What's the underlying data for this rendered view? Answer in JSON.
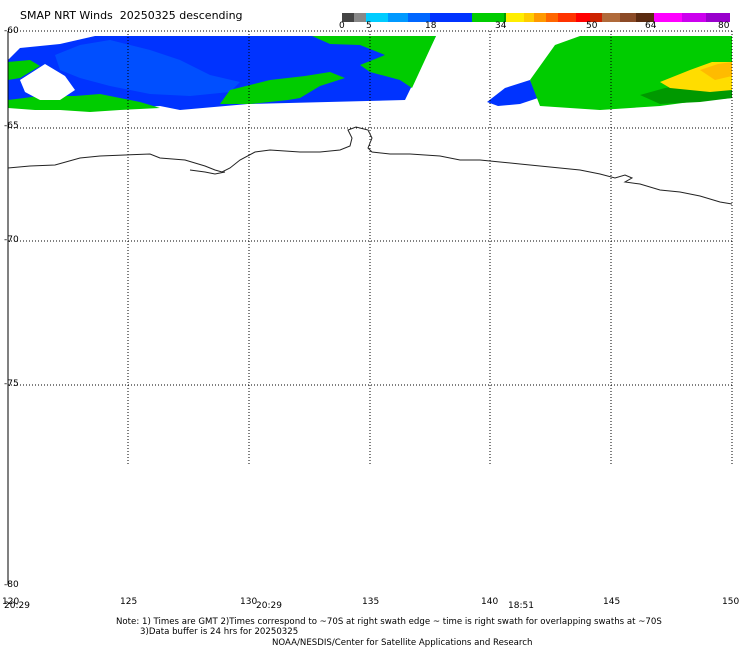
{
  "title": "SMAP NRT Winds  20250325 descending",
  "colorbar": {
    "labels": [
      "0",
      "5",
      "18",
      "34",
      "50",
      "64",
      "80"
    ],
    "colors": [
      "#444444",
      "#666666",
      "#999999",
      "#00ccff",
      "#0099ff",
      "#0066ff",
      "#0033ff",
      "#00cc00",
      "#009900",
      "#ffff00",
      "#ffcc00",
      "#ff9900",
      "#ff6600",
      "#ff3300",
      "#ff0000",
      "#cc6633",
      "#996633",
      "#663300",
      "#ff00ff",
      "#cc00ff",
      "#9900cc"
    ]
  },
  "map": {
    "lat_labels": [
      "-60",
      "-65",
      "-70",
      "-75",
      "-80"
    ],
    "lon_labels": [
      "120",
      "125",
      "130",
      "135",
      "140",
      "145",
      "150"
    ],
    "swath_times": [
      "20:29",
      "20:29",
      "18:51"
    ],
    "grid": "dotted",
    "wind_colors": {
      "blue": "#0033ff",
      "mid_blue": "#0066ff",
      "light_blue": "#0099ff",
      "green": "#00cc00",
      "dark_green": "#009900",
      "yellow": "#ffdd00",
      "orange": "#ffcc00"
    }
  },
  "notes": {
    "line1": "Note: 1) Times are GMT 2)Times correspond to ~70S at right swath edge ~ time is right swath for overlapping swaths at ~70S",
    "line2": "3)Data buffer is 24 hrs for 20250325",
    "line3": "NOAA/NESDIS/Center for Satellite Applications and Research"
  }
}
